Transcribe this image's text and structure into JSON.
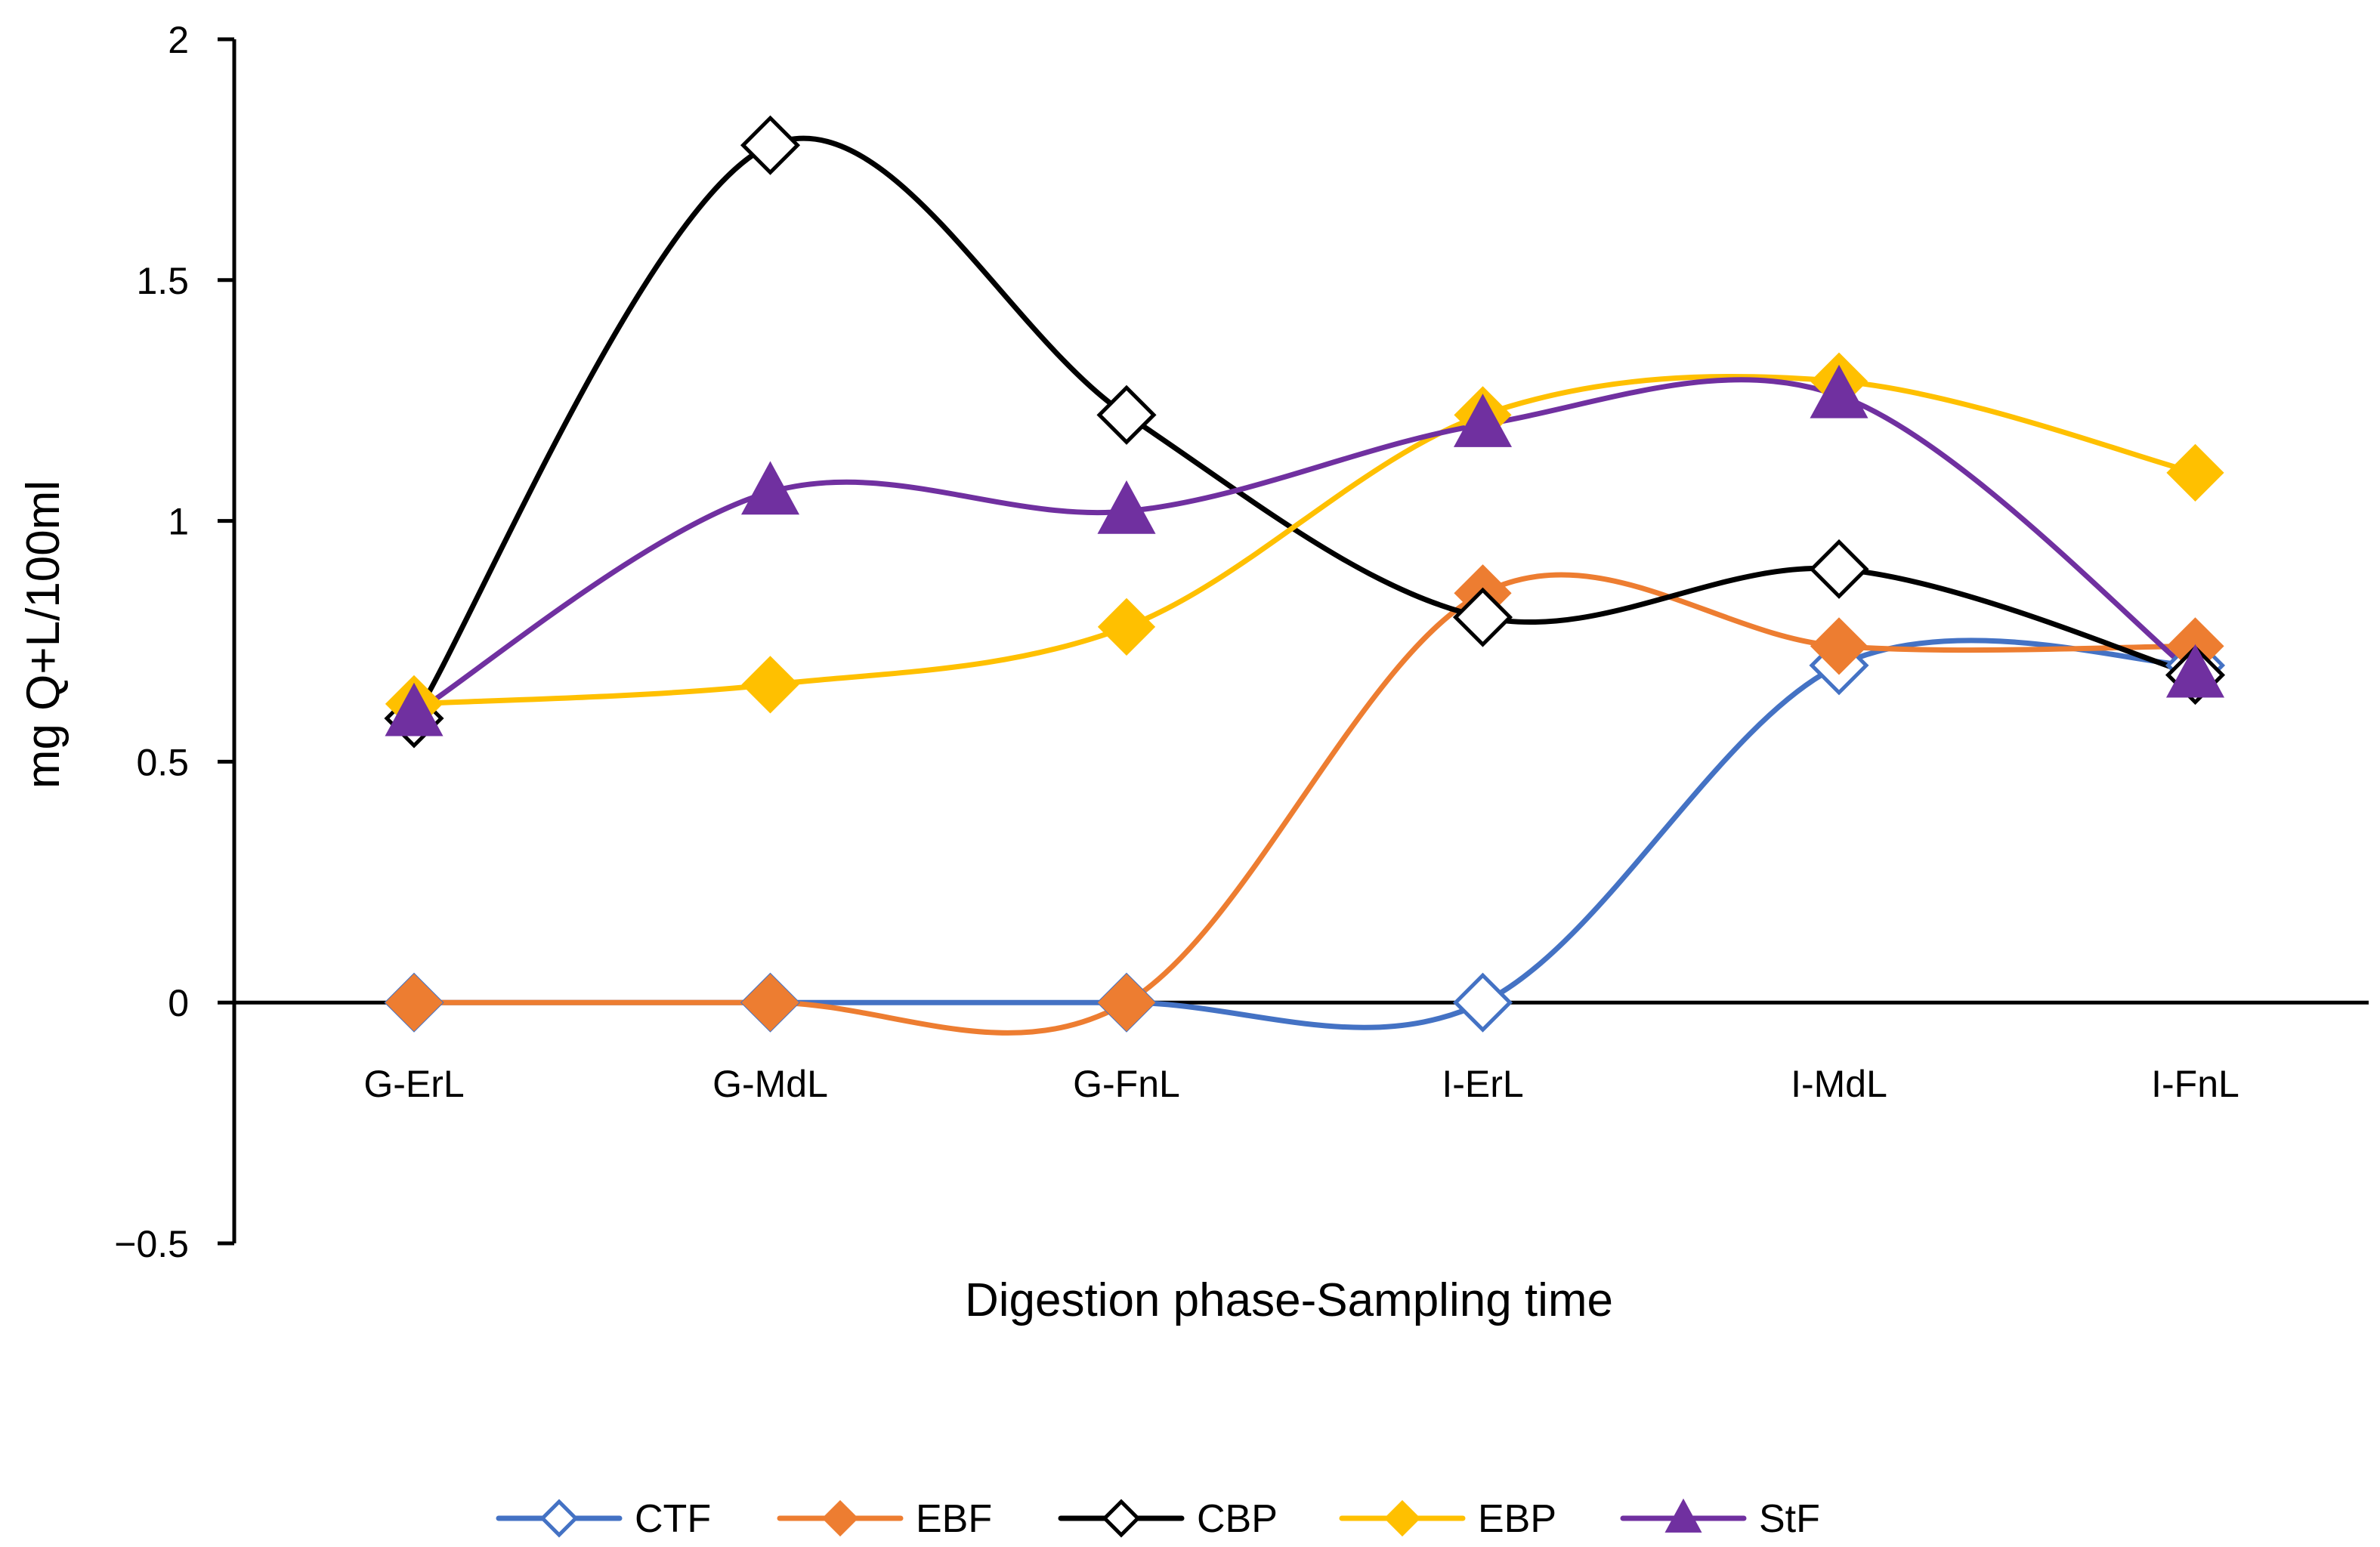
{
  "chart_data": {
    "type": "line",
    "title": "",
    "xlabel": "Digestion phase-Sampling time",
    "ylabel": "mg Q+L/100ml",
    "categories": [
      "G-ErL",
      "G-MdL",
      "G-FnL",
      "I-ErL",
      "I-MdL",
      "I-FnL"
    ],
    "ylim": [
      -0.5,
      2
    ],
    "yticks": [
      -0.5,
      0,
      0.5,
      1,
      1.5,
      2
    ],
    "ytick_labels": [
      "−0.5",
      "0",
      "0.5",
      "1",
      "1.5",
      "2"
    ],
    "grid": false,
    "smooth": true,
    "legend_position": "bottom",
    "series": [
      {
        "name": "CTF",
        "values": [
          0,
          0,
          0,
          0,
          0.7,
          0.7
        ],
        "color": "#4472C4",
        "marker": "diamond-open"
      },
      {
        "name": "EBF",
        "values": [
          0,
          0,
          0,
          0.85,
          0.74,
          0.74
        ],
        "color": "#ED7D31",
        "marker": "diamond-filled"
      },
      {
        "name": "CBP",
        "values": [
          0.59,
          1.78,
          1.22,
          0.8,
          0.9,
          0.68
        ],
        "color": "#000000",
        "marker": "diamond-open"
      },
      {
        "name": "EBP",
        "values": [
          0.62,
          0.66,
          0.78,
          1.22,
          1.29,
          1.1
        ],
        "color": "#FFC000",
        "marker": "diamond-filled"
      },
      {
        "name": "StF",
        "values": [
          0.6,
          1.06,
          1.02,
          1.2,
          1.26,
          0.68
        ],
        "color": "#7030A0",
        "marker": "triangle-filled"
      }
    ]
  }
}
